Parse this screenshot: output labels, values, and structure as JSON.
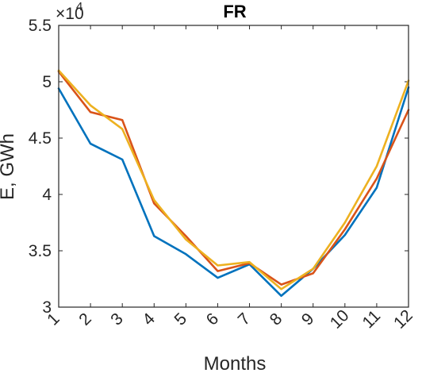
{
  "chart_data": {
    "type": "line",
    "title": "FR",
    "xlabel": "Months",
    "ylabel": "E, GWh",
    "y_multiplier_base": "×10",
    "y_multiplier_exponent": "4",
    "categories": [
      "1",
      "2",
      "3",
      "4",
      "5",
      "6",
      "7",
      "8",
      "9",
      "10",
      "11",
      "12"
    ],
    "x": [
      1,
      2,
      3,
      4,
      5,
      6,
      7,
      8,
      9,
      10,
      11,
      12
    ],
    "xlim": [
      1,
      12
    ],
    "ylim": [
      3.0,
      5.5
    ],
    "ytick_values": [
      3,
      3.5,
      4,
      4.5,
      5,
      5.5
    ],
    "ytick_labels": [
      "3",
      "3.5",
      "4",
      "4.5",
      "5",
      "5.5"
    ],
    "grid": false,
    "series": [
      {
        "color": "#0072BD",
        "values": [
          4.94,
          4.45,
          4.31,
          3.63,
          3.47,
          3.26,
          3.38,
          3.1,
          3.34,
          3.64,
          4.06,
          4.95
        ]
      },
      {
        "color": "#D95319",
        "values": [
          5.09,
          4.73,
          4.66,
          3.92,
          3.63,
          3.32,
          3.39,
          3.2,
          3.3,
          3.69,
          4.14,
          4.75
        ]
      },
      {
        "color": "#EDB120",
        "values": [
          5.1,
          4.79,
          4.58,
          3.95,
          3.6,
          3.37,
          3.4,
          3.16,
          3.34,
          3.75,
          4.25,
          5.01
        ]
      }
    ]
  }
}
